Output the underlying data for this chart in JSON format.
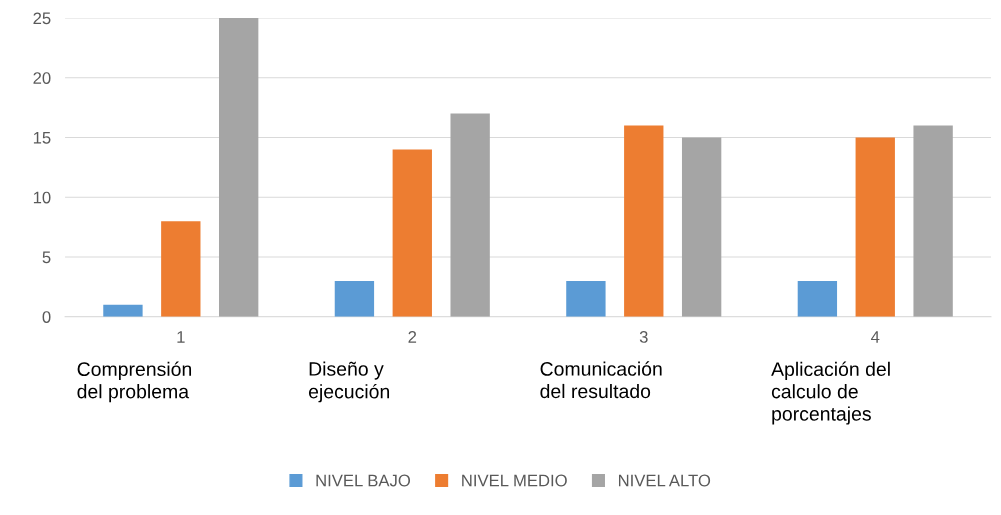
{
  "chart_data": {
    "type": "bar",
    "categories": [
      "1",
      "2",
      "3",
      "4"
    ],
    "series": [
      {
        "name": "NIVEL BAJO",
        "color": "#5b9bd5",
        "values": [
          1,
          3,
          3,
          3
        ]
      },
      {
        "name": "NIVEL MEDIO",
        "color": "#ed7d31",
        "values": [
          8,
          14,
          16,
          15
        ]
      },
      {
        "name": "NIVEL ALTO",
        "color": "#a5a5a5",
        "values": [
          25,
          17,
          15,
          16
        ]
      }
    ],
    "annotations": [
      "Comprensión\ndel problema",
      "Diseño y\nejecución",
      "Comunicación\ndel resultado",
      "Aplicación del\ncalculo de\nporcentajes"
    ],
    "ylim": [
      0,
      25
    ],
    "yticks": [
      0,
      5,
      10,
      15,
      20,
      25
    ],
    "grid": "y",
    "legend": "bottom"
  }
}
